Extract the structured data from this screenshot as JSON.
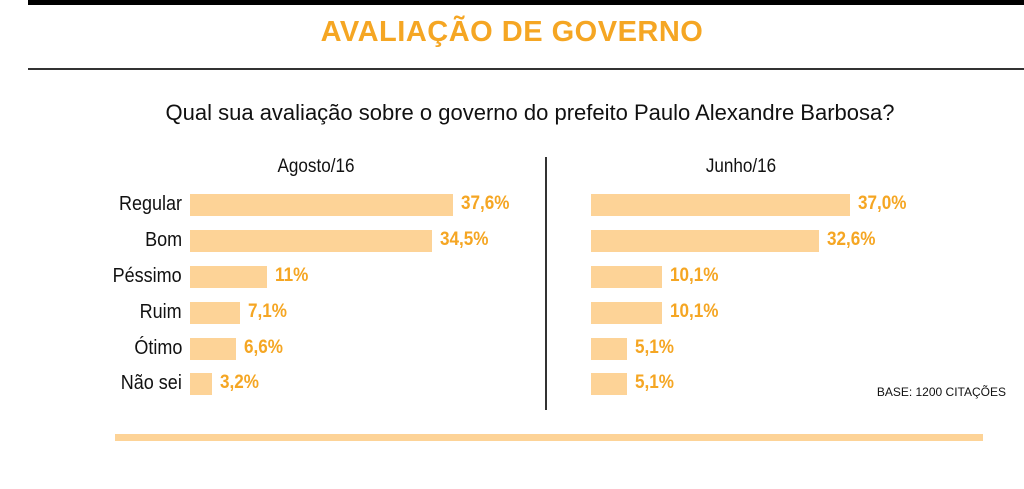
{
  "header": {
    "title": "AVALIAÇÃO DE GOVERNO"
  },
  "question": "Qual sua avaliação sobre o governo do prefeito Paulo Alexandre Barbosa?",
  "base_note": "BASE: 1200 CITAÇÕES",
  "colors": {
    "accent": "#f5a623",
    "bar": "#fdd397"
  },
  "chart_data": [
    {
      "type": "bar",
      "orientation": "horizontal",
      "title": "Agosto/16",
      "categories": [
        "Regular",
        "Bom",
        "Péssimo",
        "Ruim",
        "Ótimo",
        "Não sei"
      ],
      "values": [
        37.6,
        34.5,
        11,
        7.1,
        6.6,
        3.2
      ],
      "value_labels": [
        "37,6%",
        "34,5%",
        "11%",
        "7,1%",
        "6,6%",
        "3,2%"
      ],
      "unit": "%"
    },
    {
      "type": "bar",
      "orientation": "horizontal",
      "title": "Junho/16",
      "categories": [
        "Regular",
        "Bom",
        "Péssimo",
        "Ruim",
        "Ótimo",
        "Não sei"
      ],
      "values": [
        37.0,
        32.6,
        10.1,
        10.1,
        5.1,
        5.1
      ],
      "value_labels": [
        "37,0%",
        "32,6%",
        "10,1%",
        "10,1%",
        "5,1%",
        "5,1%"
      ],
      "unit": "%"
    }
  ]
}
